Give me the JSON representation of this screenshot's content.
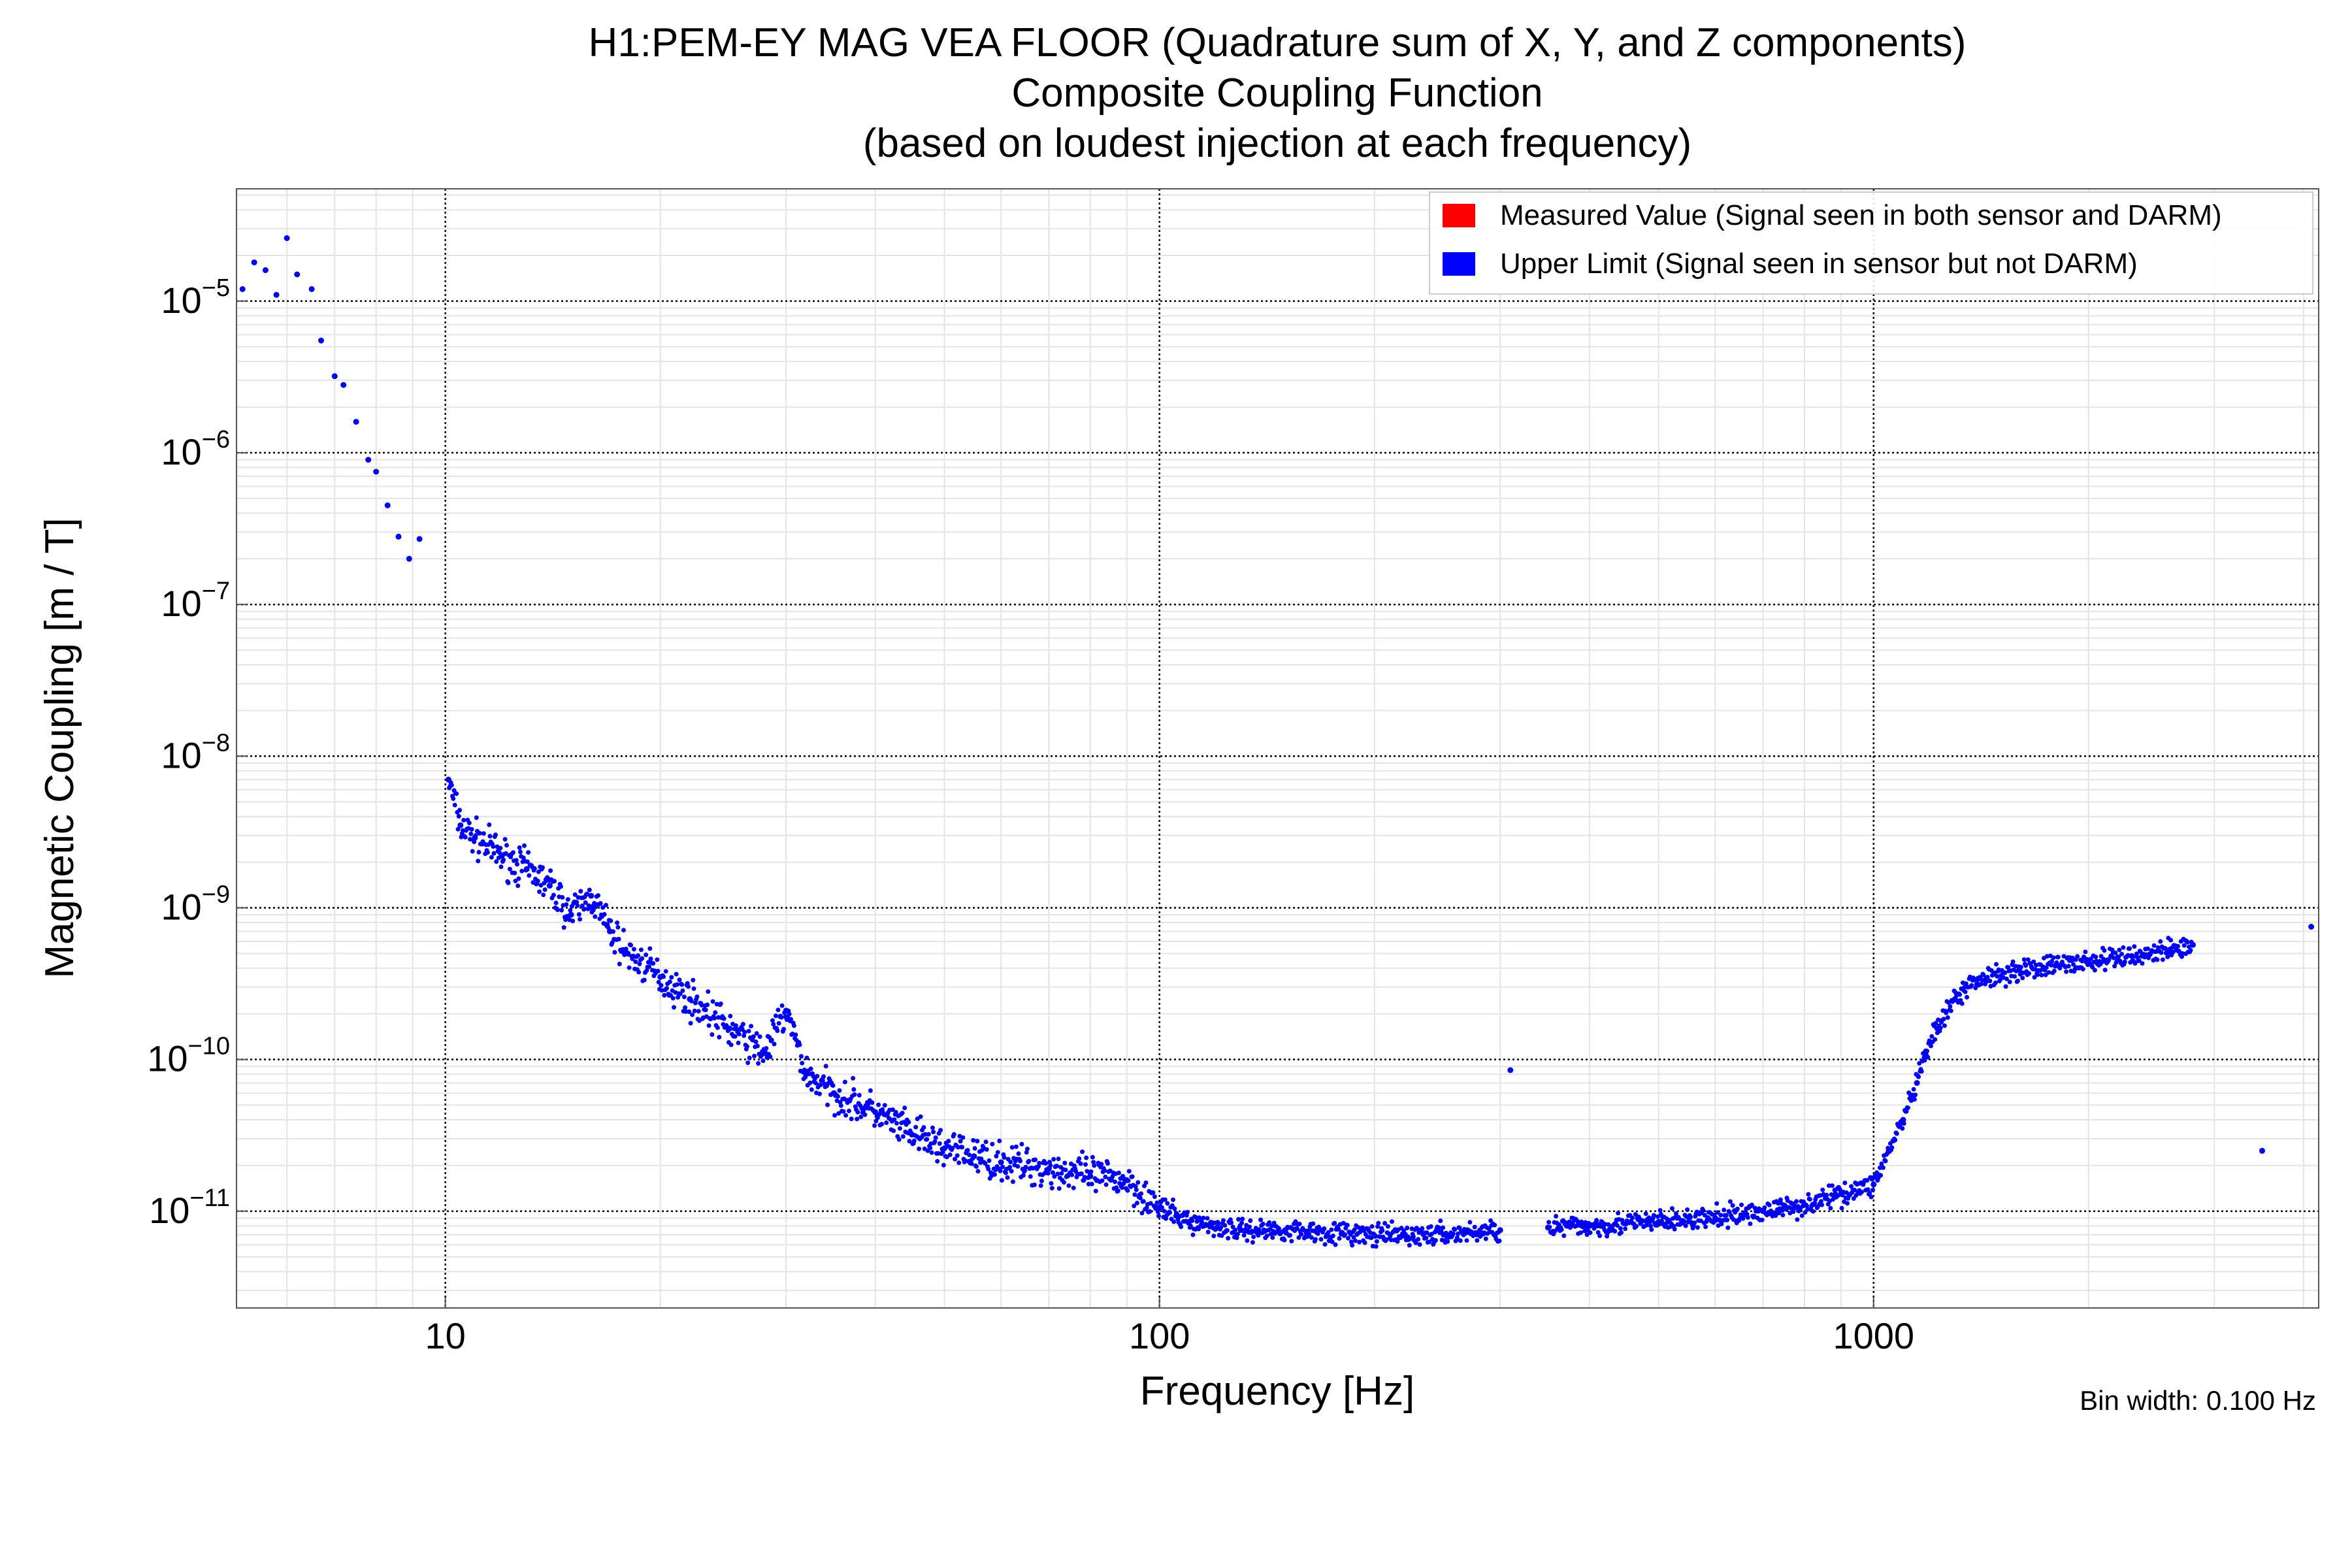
{
  "chart_data": {
    "type": "scatter",
    "title": [
      "H1:PEM-EY MAG VEA FLOOR (Quadrature sum of X, Y, and Z components)",
      "Composite Coupling Function",
      "(based on loudest injection at each frequency)"
    ],
    "xlabel": "Frequency [Hz]",
    "ylabel": "Magnetic Coupling [m / T]",
    "xscale": "log",
    "yscale": "log",
    "xlim": [
      5.1,
      4200
    ],
    "ylim": [
      2.3e-12,
      5.5e-05
    ],
    "grid": true,
    "x_ticks": [
      {
        "value": 10,
        "label": "10"
      },
      {
        "value": 100,
        "label": "100"
      },
      {
        "value": 1000,
        "label": "1000"
      }
    ],
    "y_ticks": [
      {
        "value": 1e-05,
        "base": "10",
        "exp": "−5"
      },
      {
        "value": 1e-06,
        "base": "10",
        "exp": "−6"
      },
      {
        "value": 1e-07,
        "base": "10",
        "exp": "−7"
      },
      {
        "value": 1e-08,
        "base": "10",
        "exp": "−8"
      },
      {
        "value": 1e-09,
        "base": "10",
        "exp": "−9"
      },
      {
        "value": 1e-10,
        "base": "10",
        "exp": "−10"
      },
      {
        "value": 1e-11,
        "base": "10",
        "exp": "−11"
      }
    ],
    "legend": {
      "placement": "top-right",
      "entries": [
        {
          "label": "Measured Value (Signal seen in both sensor and DARM)",
          "color": "#ff0000"
        },
        {
          "label": "Upper Limit (Signal seen in sensor but not DARM)",
          "color": "#0000ff"
        }
      ]
    },
    "annotation": "Bin width: 0.100 Hz",
    "series": [
      {
        "name": "Upper Limit (Signal seen in sensor but not DARM)",
        "color": "#0000ff",
        "points": [
          [
            5.2,
            1.2e-05
          ],
          [
            5.4,
            1.8e-05
          ],
          [
            5.6,
            1.6e-05
          ],
          [
            5.8,
            1.1e-05
          ],
          [
            6.0,
            2.6e-05
          ],
          [
            6.2,
            1.5e-05
          ],
          [
            6.5,
            1.2e-05
          ],
          [
            6.7,
            5.5e-06
          ],
          [
            7.0,
            3.2e-06
          ],
          [
            7.2,
            2.8e-06
          ],
          [
            7.5,
            1.6e-06
          ],
          [
            7.8,
            9e-07
          ],
          [
            8.0,
            7.5e-07
          ],
          [
            8.3,
            4.5e-07
          ],
          [
            8.6,
            2.8e-07
          ],
          [
            8.9,
            2e-07
          ],
          [
            9.2,
            2.7e-07
          ],
          [
            10.1,
            7e-09
          ],
          [
            10.5,
            3.5e-09
          ],
          [
            11,
            2.9e-09
          ],
          [
            12,
            2.2e-09
          ],
          [
            13,
            1.8e-09
          ],
          [
            14,
            1.4e-09
          ],
          [
            15,
            9e-10
          ],
          [
            16,
            1.2e-09
          ],
          [
            17,
            7e-10
          ],
          [
            18,
            5e-10
          ],
          [
            20,
            3.5e-10
          ],
          [
            22,
            2.5e-10
          ],
          [
            25,
            1.6e-10
          ],
          [
            28,
            1.1e-10
          ],
          [
            30,
            2.1e-10
          ],
          [
            32,
            8e-11
          ],
          [
            35,
            6e-11
          ],
          [
            40,
            4.5e-11
          ],
          [
            45,
            3.2e-11
          ],
          [
            50,
            2.6e-11
          ],
          [
            55,
            2.3e-11
          ],
          [
            60,
            2.1e-11
          ],
          [
            70,
            1.9e-11
          ],
          [
            80,
            1.7e-11
          ],
          [
            90,
            1.6e-11
          ],
          [
            100,
            1.05e-11
          ],
          [
            110,
            8.5e-12
          ],
          [
            130,
            7.5e-12
          ],
          [
            150,
            7.5e-12
          ],
          [
            180,
            7.2e-12
          ],
          [
            200,
            6.9e-12
          ],
          [
            250,
            7e-12
          ],
          [
            300,
            7.5e-12
          ],
          [
            310,
            8.5e-11
          ],
          [
            350,
            7.8e-12
          ],
          [
            400,
            8e-12
          ],
          [
            500,
            8.5e-12
          ],
          [
            600,
            9e-12
          ],
          [
            700,
            1e-11
          ],
          [
            800,
            1.1e-11
          ],
          [
            900,
            1.3e-11
          ],
          [
            1000,
            1.5e-11
          ],
          [
            1050,
            2.5e-11
          ],
          [
            1100,
            4e-11
          ],
          [
            1150,
            7e-11
          ],
          [
            1200,
            1.3e-10
          ],
          [
            1300,
            2.5e-10
          ],
          [
            1400,
            3.4e-10
          ],
          [
            1600,
            3.9e-10
          ],
          [
            1800,
            4.2e-10
          ],
          [
            2000,
            4.4e-10
          ],
          [
            2300,
            4.8e-10
          ],
          [
            2600,
            5.3e-10
          ],
          [
            2800,
            5.7e-10
          ],
          [
            3500,
            2.5e-11
          ],
          [
            4100,
            7.5e-10
          ]
        ]
      }
    ]
  }
}
